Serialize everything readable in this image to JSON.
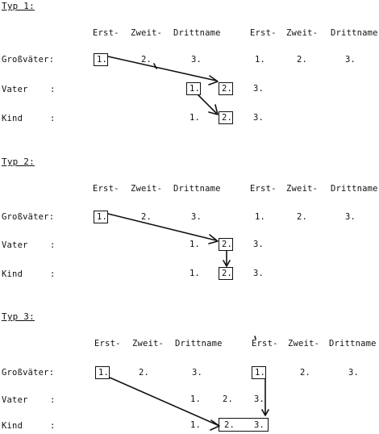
{
  "sections": [
    {
      "heading": "Typ 1:",
      "columns": [
        "Erst-",
        "Zweit-",
        "Drittname",
        "Erst-",
        "Zweit-",
        "Drittname"
      ],
      "rows": [
        {
          "label": "Großväter:",
          "cells": [
            "1.",
            "2.",
            "3.",
            "1.",
            "2.",
            "3."
          ]
        },
        {
          "label": "Vater",
          "colon": ":",
          "cells": [
            "1.",
            "2.",
            "3."
          ]
        },
        {
          "label": "Kind",
          "colon": ":",
          "cells": [
            "1.",
            "2.",
            "3."
          ]
        }
      ]
    },
    {
      "heading": "Typ 2:",
      "columns": [
        "Erst-",
        "Zweit-",
        "Drittname",
        "Erst-",
        "Zweit-",
        "Drittname"
      ],
      "rows": [
        {
          "label": "Großväter:",
          "cells": [
            "1.",
            "2.",
            "3.",
            "1.",
            "2.",
            "3."
          ]
        },
        {
          "label": "Vater",
          "colon": ":",
          "cells": [
            "1.",
            "2.",
            "3."
          ]
        },
        {
          "label": "Kind",
          "colon": ":",
          "cells": [
            "1.",
            "2.",
            "3."
          ]
        }
      ]
    },
    {
      "heading": "Typ 3:",
      "columns": [
        "Erst-",
        "Zweit-",
        "Drittname",
        "Erst-",
        "Zweit-",
        "Drittname"
      ],
      "rows": [
        {
          "label": "Großväter:",
          "cells": [
            "1.",
            "2.",
            "3.",
            "1.",
            "2.",
            "3."
          ]
        },
        {
          "label": "Vater",
          "colon": ":",
          "cells": [
            "1.",
            "2.",
            "3."
          ]
        },
        {
          "label": "Kind",
          "colon": ":",
          "cells": [
            "1.",
            "2.",
            "3."
          ]
        }
      ]
    }
  ]
}
